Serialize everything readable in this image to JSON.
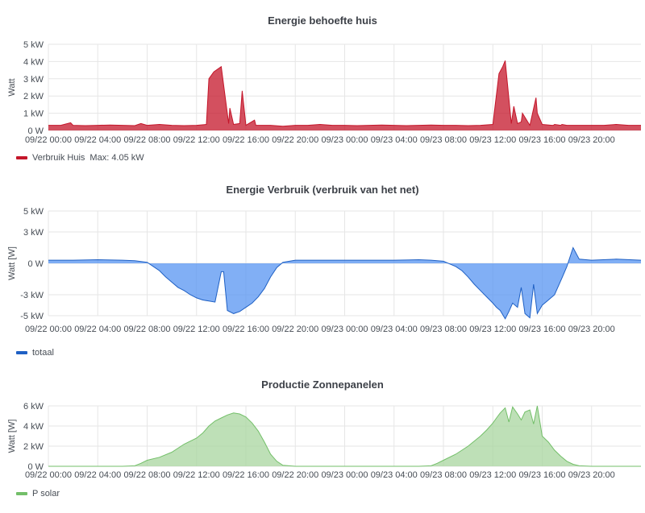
{
  "x_ticks": [
    "09/22 00:00",
    "09/22 04:00",
    "09/22 08:00",
    "09/22 12:00",
    "09/22 16:00",
    "09/22 20:00",
    "09/23 00:00",
    "09/23 04:00",
    "09/23 08:00",
    "09/23 12:00",
    "09/23 16:00",
    "09/23 20:00"
  ],
  "chart_data": [
    {
      "type": "area",
      "title": "Energie behoefte huis",
      "ylabel": "Watt",
      "y_ticks": [
        "0 W",
        "1 kW",
        "2 kW",
        "3 kW",
        "4 kW",
        "5 kW"
      ],
      "ylim": [
        0,
        5
      ],
      "xlim_hours": [
        0,
        48
      ],
      "grid": true,
      "legend": {
        "position": "bottom-left",
        "label": "Verbruik Huis",
        "extra": "Max: 4.05 kW"
      },
      "color": "#c4162a",
      "fill": "#c4162a",
      "series": [
        {
          "name": "Verbruik Huis",
          "x_hours": [
            0,
            1,
            1.8,
            2,
            3,
            4,
            5,
            6,
            7,
            7.5,
            8,
            9,
            10,
            11,
            12,
            12.8,
            13,
            13.4,
            14,
            14.6,
            14.7,
            15,
            15.5,
            15.7,
            16,
            16.7,
            16.8,
            17,
            17.5,
            18,
            19,
            20,
            21,
            22,
            23,
            24,
            25,
            26,
            27,
            28,
            29,
            30,
            31,
            32,
            33,
            34,
            35,
            36,
            36.5,
            36.8,
            37,
            37.5,
            37.7,
            38,
            38.3,
            38.4,
            39,
            39.5,
            39.6,
            40,
            40.8,
            40.9,
            41,
            41.5,
            41.6,
            42,
            43,
            44,
            45,
            46,
            47,
            48
          ],
          "values": [
            0.3,
            0.3,
            0.45,
            0.3,
            0.28,
            0.3,
            0.32,
            0.3,
            0.28,
            0.4,
            0.3,
            0.35,
            0.3,
            0.28,
            0.3,
            0.35,
            3.0,
            3.4,
            3.7,
            0.4,
            1.3,
            0.35,
            0.4,
            2.3,
            0.3,
            0.6,
            0.3,
            0.3,
            0.3,
            0.3,
            0.25,
            0.3,
            0.3,
            0.35,
            0.3,
            0.3,
            0.28,
            0.3,
            0.32,
            0.3,
            0.28,
            0.3,
            0.32,
            0.3,
            0.3,
            0.28,
            0.3,
            0.35,
            3.3,
            3.7,
            4.05,
            0.4,
            1.4,
            0.4,
            0.5,
            1.0,
            0.3,
            1.9,
            1.0,
            0.35,
            0.3,
            0.3,
            0.35,
            0.3,
            0.35,
            0.3,
            0.3,
            0.3,
            0.3,
            0.35,
            0.3,
            0.3
          ]
        }
      ]
    },
    {
      "type": "area",
      "title": "Energie Verbruik (verbruik van het net)",
      "ylabel": "Watt [W]",
      "y_ticks": [
        "-5 kW",
        "-3 kW",
        "0 W",
        "3 kW",
        "5 kW"
      ],
      "ylim": [
        -5,
        5
      ],
      "xlim_hours": [
        0,
        48
      ],
      "grid": true,
      "legend": {
        "position": "bottom-left",
        "label": "totaal"
      },
      "color": "#1f60c4",
      "fill": "#5794f2",
      "series": [
        {
          "name": "totaal",
          "x_hours": [
            0,
            2,
            4,
            6,
            7,
            8,
            8.5,
            9,
            9.5,
            10,
            10.5,
            11,
            11.5,
            12,
            12.5,
            13,
            13.5,
            14,
            14.2,
            14.5,
            15,
            15.5,
            16,
            16.5,
            17,
            17.5,
            18,
            18.5,
            19,
            20,
            22,
            24,
            26,
            28,
            30,
            31,
            32,
            33,
            33.5,
            34,
            34.5,
            35,
            35.5,
            36,
            36.3,
            36.6,
            37,
            37.3,
            37.6,
            38,
            38.3,
            38.6,
            39,
            39.3,
            39.6,
            40,
            40.5,
            41,
            41.3,
            41.6,
            42,
            42.5,
            43,
            44,
            46,
            48
          ],
          "values": [
            0.3,
            0.3,
            0.35,
            0.3,
            0.25,
            0.1,
            -0.3,
            -0.7,
            -1.3,
            -1.8,
            -2.3,
            -2.6,
            -3.0,
            -3.3,
            -3.5,
            -3.6,
            -3.7,
            -0.8,
            -0.8,
            -4.5,
            -4.8,
            -4.6,
            -4.2,
            -3.8,
            -3.2,
            -2.4,
            -1.3,
            -0.4,
            0.1,
            0.3,
            0.3,
            0.3,
            0.3,
            0.3,
            0.35,
            0.3,
            0.2,
            -0.3,
            -0.7,
            -1.3,
            -2.0,
            -2.6,
            -3.2,
            -3.8,
            -4.2,
            -4.5,
            -5.3,
            -4.6,
            -3.8,
            -4.2,
            -2.3,
            -4.8,
            -5.2,
            -2.0,
            -4.8,
            -4.0,
            -3.5,
            -3.0,
            -2.2,
            -1.4,
            -0.3,
            1.5,
            0.4,
            0.3,
            0.4,
            0.3
          ]
        }
      ]
    },
    {
      "type": "area",
      "title": "Productie Zonnepanelen",
      "ylabel": "Watt [W]",
      "y_ticks": [
        "0 W",
        "2 kW",
        "4 kW",
        "6 kW"
      ],
      "ylim": [
        0,
        6
      ],
      "xlim_hours": [
        0,
        48
      ],
      "grid": true,
      "legend": {
        "position": "bottom-left",
        "label": "P solar"
      },
      "color": "#73bf69",
      "fill": "#a8d69f",
      "series": [
        {
          "name": "P solar",
          "x_hours": [
            0,
            6,
            7,
            7.5,
            8,
            9,
            10,
            11,
            12,
            12.5,
            13,
            13.5,
            14,
            14.5,
            15,
            15.5,
            16,
            16.5,
            17,
            17.5,
            18,
            18.5,
            19,
            20,
            24,
            30,
            31,
            31.5,
            32,
            33,
            34,
            35,
            35.5,
            36,
            36.3,
            36.6,
            37,
            37.3,
            37.6,
            38,
            38.3,
            38.6,
            39,
            39.3,
            39.6,
            40,
            40.5,
            41,
            41.5,
            42,
            42.5,
            43,
            44,
            48
          ],
          "values": [
            0,
            0,
            0.05,
            0.3,
            0.6,
            0.9,
            1.4,
            2.2,
            2.8,
            3.3,
            4.0,
            4.5,
            4.8,
            5.1,
            5.3,
            5.2,
            4.9,
            4.3,
            3.5,
            2.4,
            1.2,
            0.5,
            0.1,
            0,
            0,
            0,
            0.05,
            0.3,
            0.6,
            1.2,
            2.0,
            3.0,
            3.6,
            4.3,
            4.8,
            5.3,
            5.8,
            4.4,
            5.9,
            5.2,
            4.6,
            5.4,
            5.6,
            4.2,
            6.0,
            3.0,
            2.4,
            1.6,
            1.0,
            0.5,
            0.2,
            0.05,
            0,
            0
          ]
        }
      ]
    }
  ]
}
